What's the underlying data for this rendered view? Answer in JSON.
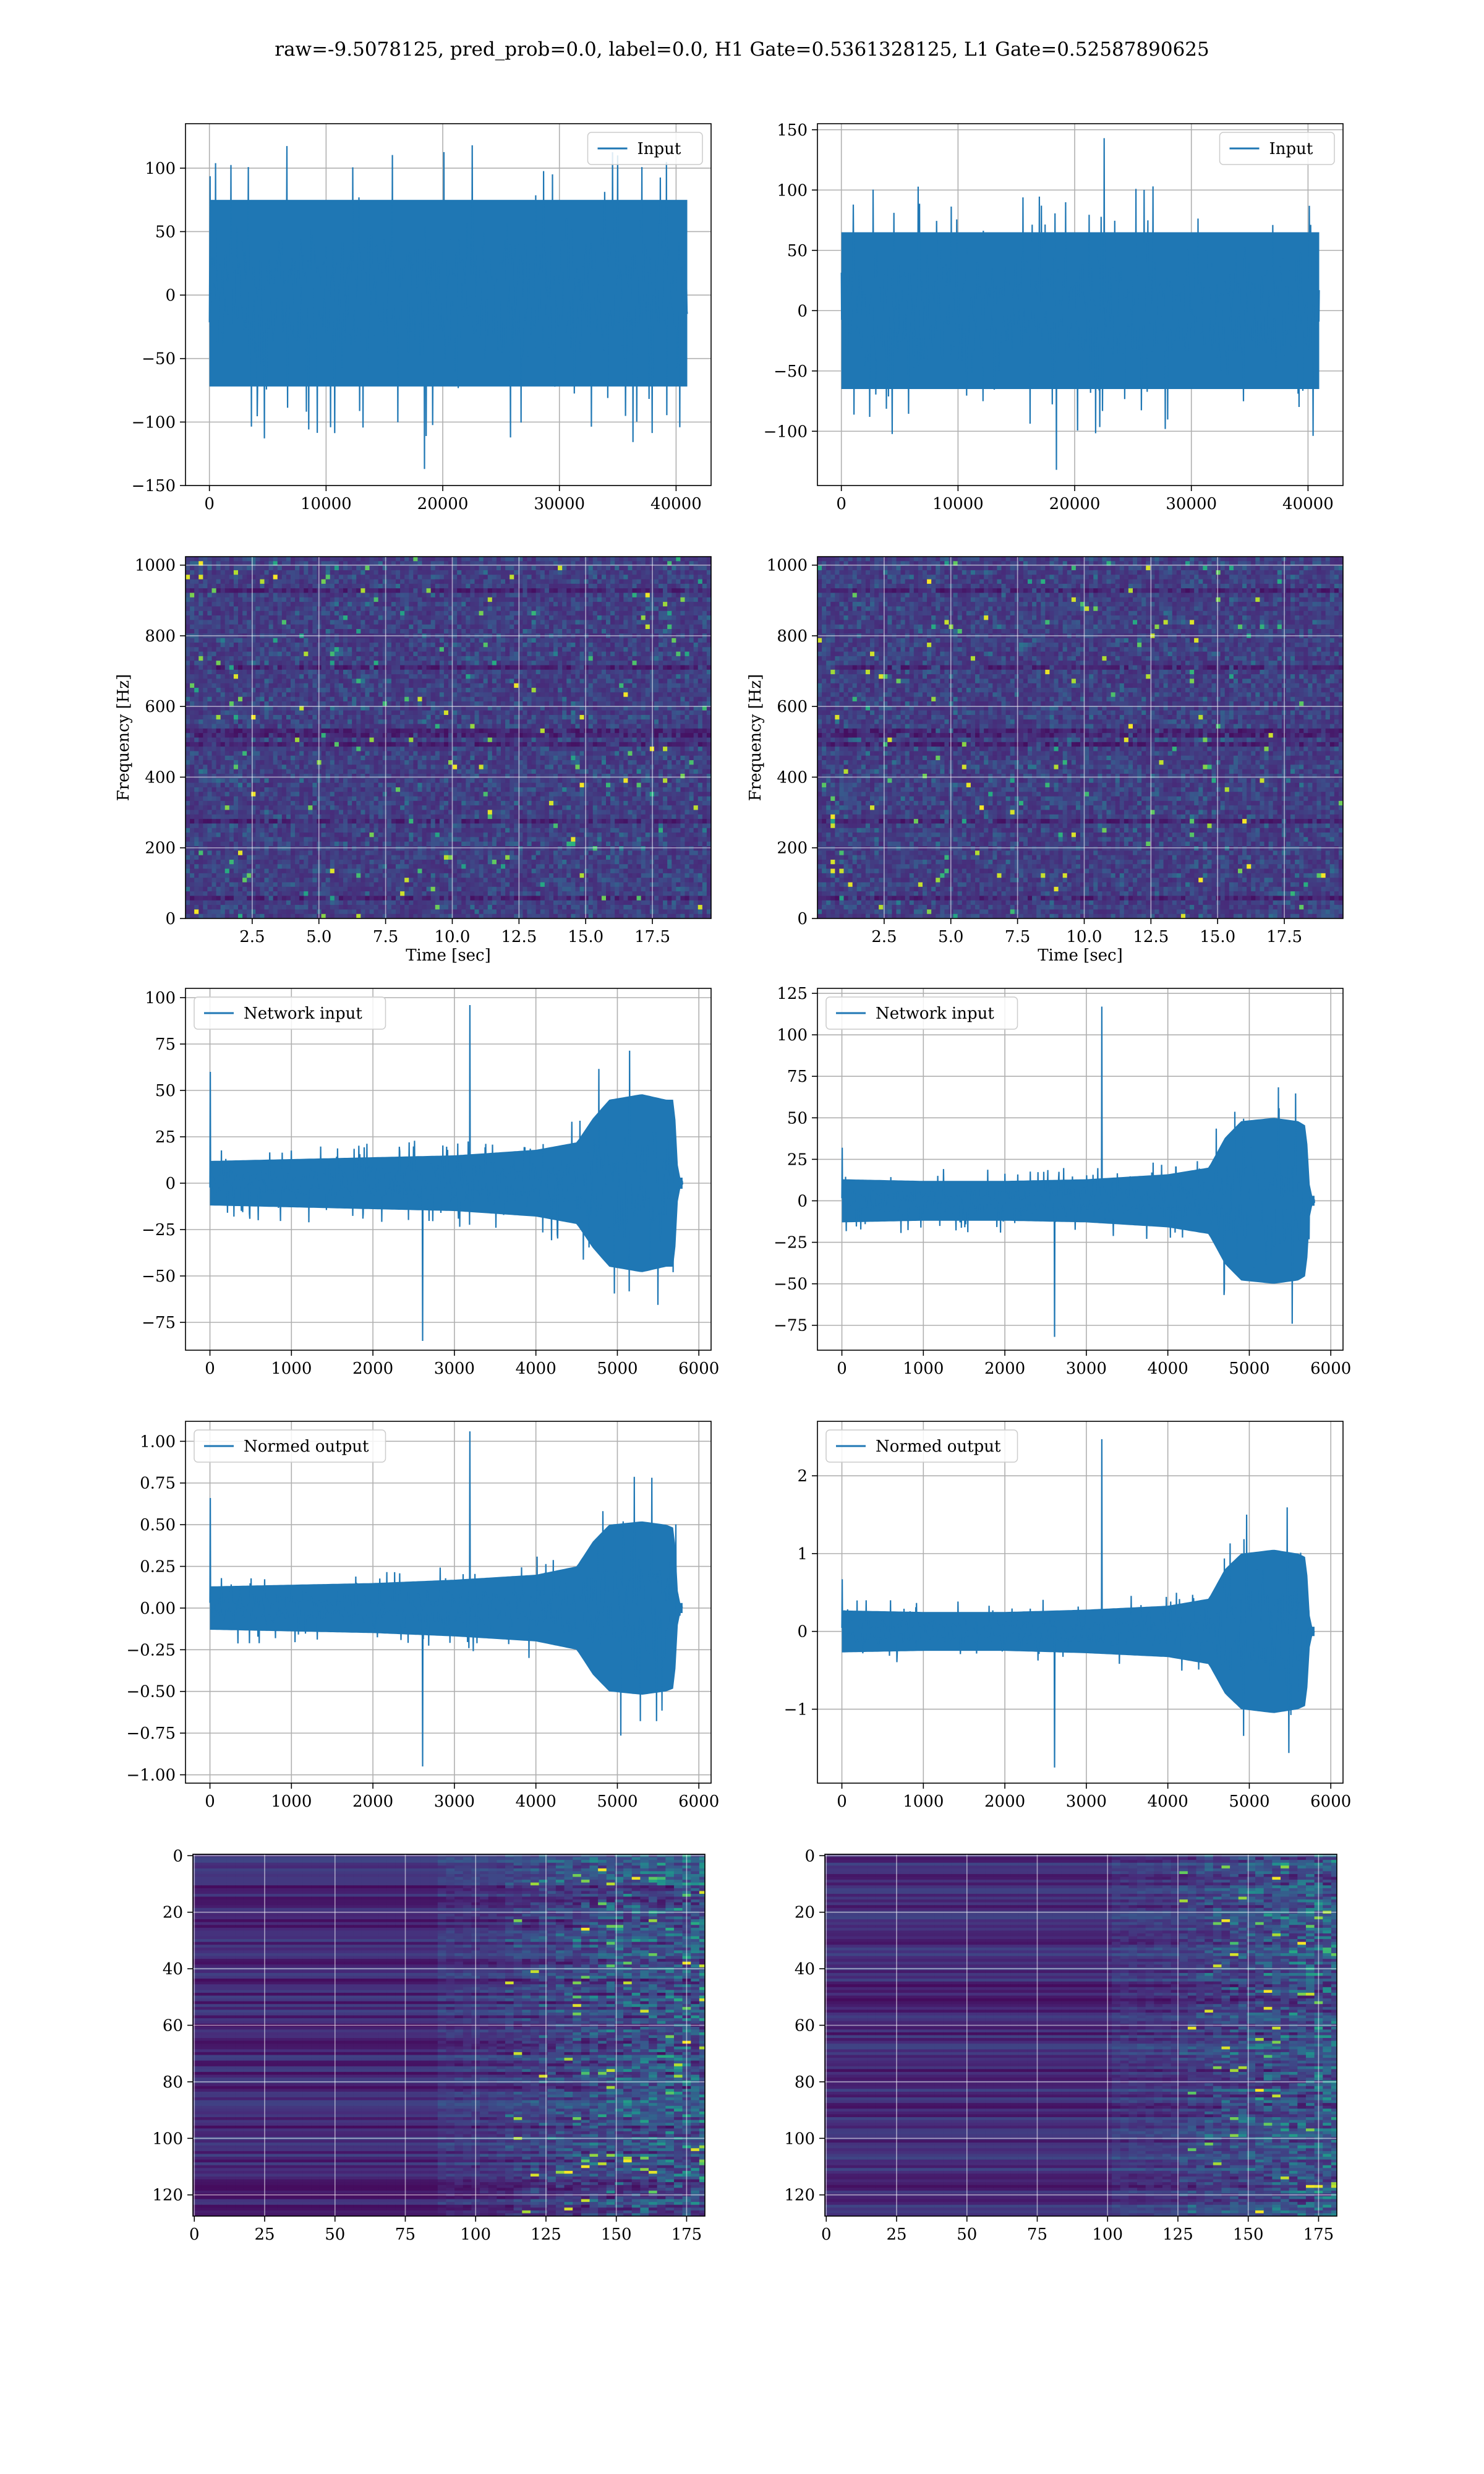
{
  "suptitle": "raw=-9.5078125, pred_prob=0.0, label=0.0, H1 Gate=0.5361328125, L1 Gate=0.52587890625",
  "colors": {
    "line": "#1f77b4",
    "grid": "#b0b0b0",
    "viridis_dark": "#440154",
    "viridis_mid": "#21918c",
    "viridis_bright": "#fde725"
  },
  "chart_data": [
    {
      "id": "h1-raw",
      "type": "line",
      "title": "",
      "xlabel": "",
      "ylabel": "",
      "xlim": [
        -2050,
        43000
      ],
      "ylim": [
        -150,
        135
      ],
      "xticks": [
        0,
        10000,
        20000,
        30000,
        40000
      ],
      "xtick_labels": [
        "0",
        "10000",
        "20000",
        "30000",
        "40000"
      ],
      "yticks": [
        -150,
        -100,
        -50,
        0,
        50,
        100
      ],
      "ytick_labels": [
        "−150",
        "−100",
        "−50",
        "0",
        "50",
        "100"
      ],
      "legend": {
        "labels": [
          "Input"
        ],
        "loc": "upper right"
      },
      "grid": true,
      "envelope": {
        "x_start": 0,
        "x_end": 40960,
        "band": [
          -72,
          75
        ],
        "peak_max": 118,
        "peak_min": -137,
        "dense": true
      }
    },
    {
      "id": "l1-raw",
      "type": "line",
      "title": "",
      "xlabel": "",
      "ylabel": "",
      "xlim": [
        -2050,
        43000
      ],
      "ylim": [
        -145,
        155
      ],
      "xticks": [
        0,
        10000,
        20000,
        30000,
        40000
      ],
      "xtick_labels": [
        "0",
        "10000",
        "20000",
        "30000",
        "40000"
      ],
      "yticks": [
        -100,
        -50,
        0,
        50,
        100,
        150
      ],
      "ytick_labels": [
        "−100",
        "−50",
        "0",
        "50",
        "100",
        "150"
      ],
      "legend": {
        "labels": [
          "Input"
        ],
        "loc": "upper right"
      },
      "grid": true,
      "envelope": {
        "x_start": 0,
        "x_end": 40960,
        "band": [
          -65,
          65
        ],
        "peak_max": 143,
        "peak_min": -132,
        "dense": true
      }
    },
    {
      "id": "h1-spec",
      "type": "heatmap",
      "title": "",
      "xlabel": "Time [sec]",
      "ylabel": "Frequency [Hz]",
      "xlim": [
        0,
        19.7
      ],
      "ylim": [
        0,
        1024
      ],
      "xticks": [
        2.5,
        5.0,
        7.5,
        10.0,
        12.5,
        15.0,
        17.5
      ],
      "xtick_labels": [
        "2.5",
        "5.0",
        "7.5",
        "10.0",
        "12.5",
        "15.0",
        "17.5"
      ],
      "yticks": [
        0,
        200,
        400,
        600,
        800,
        1000
      ],
      "ytick_labels": [
        "0",
        "200",
        "400",
        "600",
        "800",
        "1000"
      ],
      "colormap": "viridis",
      "grid": true,
      "texture": "noise"
    },
    {
      "id": "l1-spec",
      "type": "heatmap",
      "title": "",
      "xlabel": "Time [sec]",
      "ylabel": "Frequency [Hz]",
      "xlim": [
        0,
        19.7
      ],
      "ylim": [
        0,
        1024
      ],
      "xticks": [
        2.5,
        5.0,
        7.5,
        10.0,
        12.5,
        15.0,
        17.5
      ],
      "xtick_labels": [
        "2.5",
        "5.0",
        "7.5",
        "10.0",
        "12.5",
        "15.0",
        "17.5"
      ],
      "yticks": [
        0,
        200,
        400,
        600,
        800,
        1000
      ],
      "ytick_labels": [
        "0",
        "200",
        "400",
        "600",
        "800",
        "1000"
      ],
      "colormap": "viridis",
      "grid": true,
      "texture": "noise"
    },
    {
      "id": "h1-net",
      "type": "line",
      "title": "",
      "xlabel": "",
      "ylabel": "",
      "xlim": [
        -300,
        6150
      ],
      "ylim": [
        -90,
        105
      ],
      "xticks": [
        0,
        1000,
        2000,
        3000,
        4000,
        5000,
        6000
      ],
      "xtick_labels": [
        "0",
        "1000",
        "2000",
        "3000",
        "4000",
        "5000",
        "6000"
      ],
      "yticks": [
        -75,
        -50,
        -25,
        0,
        25,
        50,
        75,
        100
      ],
      "ytick_labels": [
        "−75",
        "−50",
        "−25",
        "0",
        "25",
        "50",
        "75",
        "100"
      ],
      "legend": {
        "labels": [
          "Network input"
        ],
        "loc": "upper left"
      },
      "grid": true,
      "envelope": {
        "x_start": 0,
        "x_end": 5800,
        "band_points": [
          [
            0,
            12
          ],
          [
            1000,
            13
          ],
          [
            2000,
            14
          ],
          [
            3000,
            15
          ],
          [
            4000,
            18
          ],
          [
            4500,
            22
          ],
          [
            4700,
            35
          ],
          [
            4900,
            45
          ],
          [
            5300,
            48
          ],
          [
            5600,
            45
          ],
          [
            5700,
            45
          ],
          [
            5750,
            3
          ],
          [
            5800,
            3
          ]
        ],
        "peak_max": 96,
        "peak_min": -85,
        "spike_at_start": 60,
        "dense": true
      }
    },
    {
      "id": "l1-net",
      "type": "line",
      "title": "",
      "xlabel": "",
      "ylabel": "",
      "xlim": [
        -300,
        6150
      ],
      "ylim": [
        -90,
        128
      ],
      "xticks": [
        0,
        1000,
        2000,
        3000,
        4000,
        5000,
        6000
      ],
      "xtick_labels": [
        "0",
        "1000",
        "2000",
        "3000",
        "4000",
        "5000",
        "6000"
      ],
      "yticks": [
        -75,
        -50,
        -25,
        0,
        25,
        50,
        75,
        100,
        125
      ],
      "ytick_labels": [
        "−75",
        "−50",
        "−25",
        "0",
        "25",
        "50",
        "75",
        "100",
        "125"
      ],
      "legend": {
        "labels": [
          "Network input"
        ],
        "loc": "upper left"
      },
      "grid": true,
      "envelope": {
        "x_start": 0,
        "x_end": 5800,
        "band_points": [
          [
            0,
            13
          ],
          [
            1000,
            12
          ],
          [
            2000,
            12
          ],
          [
            3000,
            13
          ],
          [
            4000,
            16
          ],
          [
            4500,
            20
          ],
          [
            4700,
            38
          ],
          [
            4900,
            48
          ],
          [
            5300,
            50
          ],
          [
            5600,
            48
          ],
          [
            5700,
            45
          ],
          [
            5750,
            3
          ],
          [
            5800,
            3
          ]
        ],
        "peak_max": 117,
        "peak_min": -82,
        "spike_at_start": 32,
        "dense": true
      }
    },
    {
      "id": "h1-normed",
      "type": "line",
      "title": "",
      "xlabel": "",
      "ylabel": "",
      "xlim": [
        -300,
        6150
      ],
      "ylim": [
        -1.05,
        1.12
      ],
      "xticks": [
        0,
        1000,
        2000,
        3000,
        4000,
        5000,
        6000
      ],
      "xtick_labels": [
        "0",
        "1000",
        "2000",
        "3000",
        "4000",
        "5000",
        "6000"
      ],
      "yticks": [
        -1.0,
        -0.75,
        -0.5,
        -0.25,
        0.0,
        0.25,
        0.5,
        0.75,
        1.0
      ],
      "ytick_labels": [
        "−1.00",
        "−0.75",
        "−0.50",
        "−0.25",
        "0.00",
        "0.25",
        "0.50",
        "0.75",
        "1.00"
      ],
      "legend": {
        "labels": [
          "Normed output"
        ],
        "loc": "upper left"
      },
      "grid": true,
      "envelope": {
        "x_start": 0,
        "x_end": 5800,
        "band_points": [
          [
            0,
            0.13
          ],
          [
            1000,
            0.14
          ],
          [
            2000,
            0.15
          ],
          [
            3000,
            0.17
          ],
          [
            4000,
            0.2
          ],
          [
            4500,
            0.25
          ],
          [
            4700,
            0.4
          ],
          [
            4900,
            0.5
          ],
          [
            5300,
            0.52
          ],
          [
            5600,
            0.5
          ],
          [
            5700,
            0.48
          ],
          [
            5750,
            0.03
          ],
          [
            5800,
            0.03
          ]
        ],
        "peak_max": 1.06,
        "peak_min": -0.95,
        "spike_at_start": 0.66,
        "dense": true
      }
    },
    {
      "id": "l1-normed",
      "type": "line",
      "title": "",
      "xlabel": "",
      "ylabel": "",
      "xlim": [
        -300,
        6150
      ],
      "ylim": [
        -1.95,
        2.7
      ],
      "xticks": [
        0,
        1000,
        2000,
        3000,
        4000,
        5000,
        6000
      ],
      "xtick_labels": [
        "0",
        "1000",
        "2000",
        "3000",
        "4000",
        "5000",
        "6000"
      ],
      "yticks": [
        -1,
        0,
        1,
        2
      ],
      "ytick_labels": [
        "−1",
        "0",
        "1",
        "2"
      ],
      "legend": {
        "labels": [
          "Normed output"
        ],
        "loc": "upper left"
      },
      "grid": true,
      "envelope": {
        "x_start": 0,
        "x_end": 5800,
        "band_points": [
          [
            0,
            0.27
          ],
          [
            1000,
            0.25
          ],
          [
            2000,
            0.25
          ],
          [
            3000,
            0.28
          ],
          [
            4000,
            0.33
          ],
          [
            4500,
            0.42
          ],
          [
            4700,
            0.8
          ],
          [
            4900,
            1.0
          ],
          [
            5300,
            1.05
          ],
          [
            5600,
            1.0
          ],
          [
            5700,
            0.95
          ],
          [
            5750,
            0.06
          ],
          [
            5800,
            0.06
          ]
        ],
        "peak_max": 2.47,
        "peak_min": -1.75,
        "spike_at_start": 0.67,
        "dense": true
      }
    },
    {
      "id": "h1-features",
      "type": "heatmap",
      "title": "",
      "xlabel": "",
      "ylabel": "",
      "xlim": [
        -0.5,
        181.5
      ],
      "ylim": [
        127.5,
        -0.5
      ],
      "xticks": [
        0,
        25,
        50,
        75,
        100,
        125,
        150,
        175
      ],
      "xtick_labels": [
        "0",
        "25",
        "50",
        "75",
        "100",
        "125",
        "150",
        "175"
      ],
      "yticks": [
        0,
        20,
        40,
        60,
        80,
        100,
        120
      ],
      "ytick_labels": [
        "0",
        "20",
        "40",
        "60",
        "80",
        "100",
        "120"
      ],
      "colormap": "viridis",
      "grid": true,
      "rows": 128,
      "cols": 182,
      "active_from_col": 110,
      "texture": "row-stripes"
    },
    {
      "id": "l1-features",
      "type": "heatmap",
      "title": "",
      "xlabel": "",
      "ylabel": "",
      "xlim": [
        -0.5,
        181.5
      ],
      "ylim": [
        127.5,
        -0.5
      ],
      "xticks": [
        0,
        25,
        50,
        75,
        100,
        125,
        150,
        175
      ],
      "xtick_labels": [
        "0",
        "25",
        "50",
        "75",
        "100",
        "125",
        "150",
        "175"
      ],
      "yticks": [
        0,
        20,
        40,
        60,
        80,
        100,
        120
      ],
      "ytick_labels": [
        "0",
        "20",
        "40",
        "60",
        "80",
        "100",
        "120"
      ],
      "colormap": "viridis",
      "grid": true,
      "rows": 128,
      "cols": 182,
      "active_from_col": 125,
      "texture": "row-stripes"
    }
  ]
}
